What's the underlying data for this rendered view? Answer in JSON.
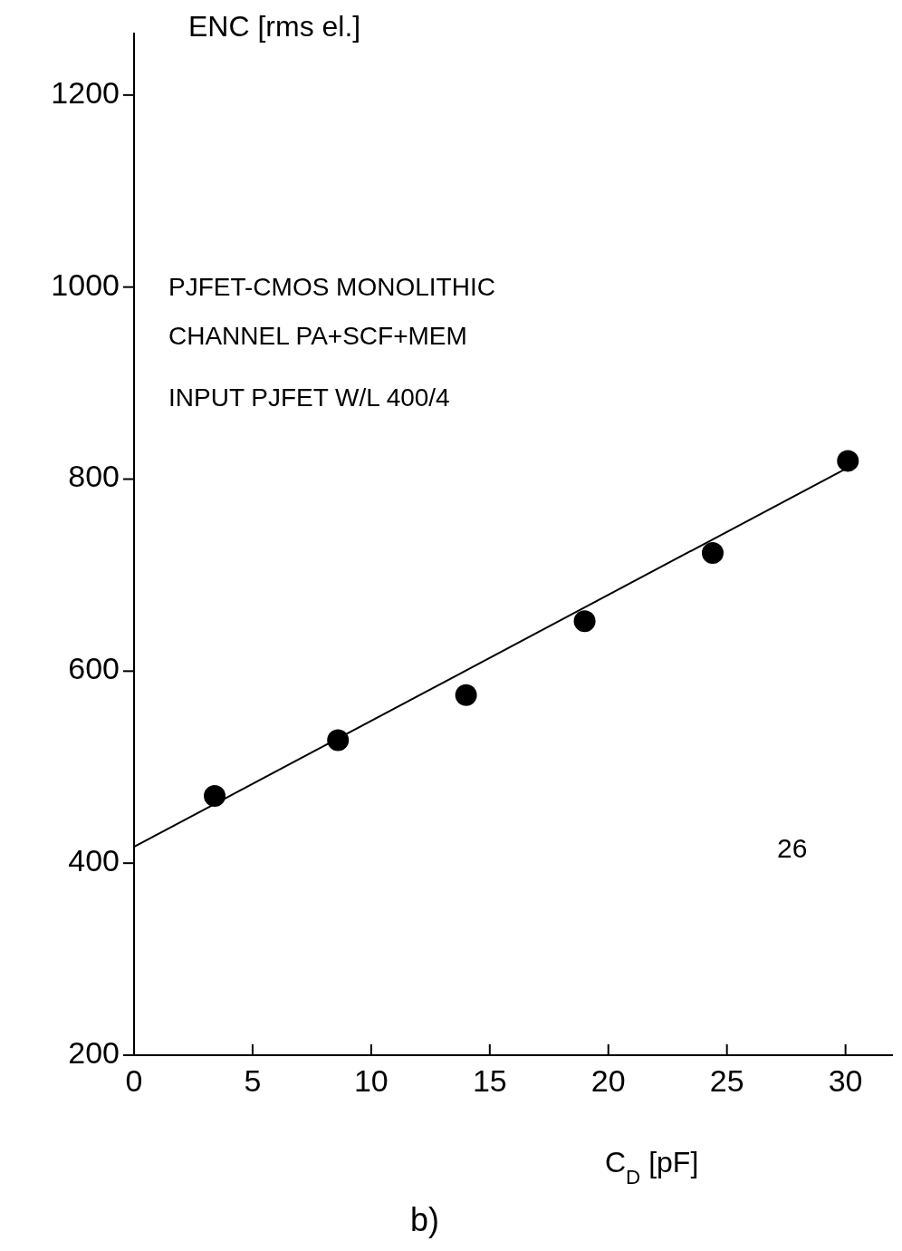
{
  "chart_data": {
    "type": "scatter",
    "ylabel": "ENC [rms el.]",
    "xlabel": "C$_{D}$ [pF]",
    "annotations": [
      "PJFET-CMOS MONOLITHIC",
      "CHANNEL PA+SCF+MEM",
      "INPUT PJFET W/L 400/4",
      "26",
      "b)"
    ],
    "xlim": [
      0,
      32
    ],
    "xticks": [
      0,
      5,
      10,
      15,
      20,
      25,
      30
    ],
    "ylim": [
      200,
      1265
    ],
    "yticks": [
      200,
      400,
      600,
      800,
      1000,
      1200
    ],
    "grid": false,
    "marker": "circle",
    "series": [
      {
        "color": "#000000",
        "x": [
          3.4,
          8.6,
          14.0,
          19.0,
          24.4,
          30.1
        ],
        "values": [
          470,
          528,
          575,
          652,
          723,
          819
        ]
      },
      {
        "type": "line",
        "color": "#000000",
        "line_style": "solid",
        "marker": "none",
        "x": [
          0,
          30.1
        ],
        "values": [
          417,
          812
        ]
      }
    ]
  }
}
